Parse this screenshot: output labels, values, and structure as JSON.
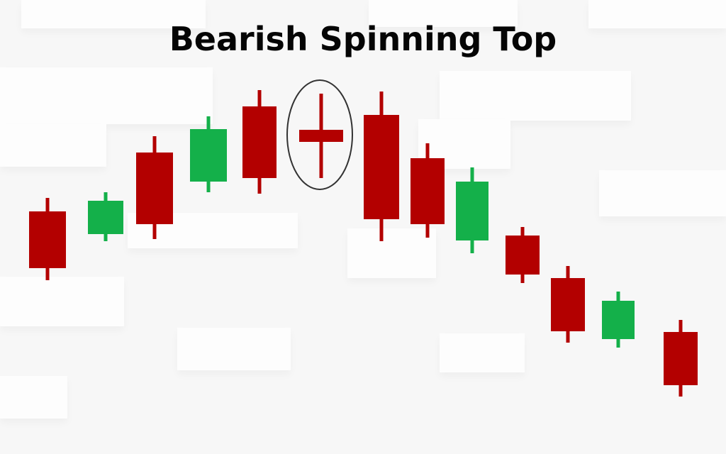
{
  "chart_data": {
    "type": "candlestick",
    "title": "Bearish Spinning Top",
    "xlabel": "",
    "ylabel": "",
    "grid": false,
    "legend": "none",
    "colors": {
      "bullish": "#14b04a",
      "bearish": "#b30000",
      "highlight_ring": "#333333"
    },
    "ylim": [
      0,
      640
    ],
    "candles": [
      {
        "index": 1,
        "direction": "bearish",
        "open": 342,
        "close": 262,
        "high": 361,
        "low": 245
      },
      {
        "index": 2,
        "direction": "bullish",
        "open": 310,
        "close": 357,
        "high": 369,
        "low": 300
      },
      {
        "index": 3,
        "direction": "bearish",
        "open": 425,
        "close": 324,
        "high": 448,
        "low": 303
      },
      {
        "index": 4,
        "direction": "bullish",
        "open": 384,
        "close": 458,
        "high": 476,
        "low": 369
      },
      {
        "index": 5,
        "direction": "bearish",
        "open": 490,
        "close": 389,
        "high": 513,
        "low": 367
      },
      {
        "index": 6,
        "direction": "bearish",
        "open": 457,
        "close": 440,
        "high": 508,
        "low": 389,
        "pattern": "spinning top",
        "highlighted": true
      },
      {
        "index": 7,
        "direction": "bearish",
        "open": 478,
        "close": 331,
        "high": 511,
        "low": 300
      },
      {
        "index": 8,
        "direction": "bearish",
        "open": 417,
        "close": 324,
        "high": 438,
        "low": 305
      },
      {
        "index": 9,
        "direction": "bullish",
        "open": 301,
        "close": 384,
        "high": 404,
        "low": 283
      },
      {
        "index": 10,
        "direction": "bearish",
        "open": 308,
        "close": 253,
        "high": 320,
        "low": 241
      },
      {
        "index": 11,
        "direction": "bearish",
        "open": 248,
        "close": 173,
        "high": 265,
        "low": 157
      },
      {
        "index": 12,
        "direction": "bullish",
        "open": 162,
        "close": 216,
        "high": 229,
        "low": 150
      },
      {
        "index": 13,
        "direction": "bearish",
        "open": 172,
        "close": 97,
        "high": 189,
        "low": 81
      }
    ]
  }
}
